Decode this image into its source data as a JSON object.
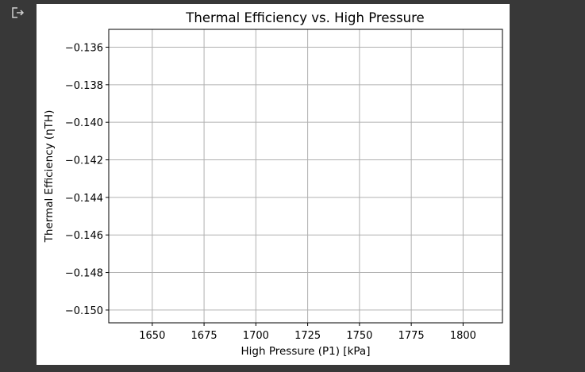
{
  "output": {
    "icon": "output-toggle-icon"
  },
  "chart_data": {
    "type": "line",
    "title": "Thermal Efficiency vs. High Pressure",
    "xlabel": "High Pressure (P1) [kPa]",
    "ylabel": "Thermal Efficiency (ηTH)",
    "xlim": [
      1629,
      1819
    ],
    "ylim": [
      -0.15068,
      -0.13505
    ],
    "xticks": [
      1650,
      1675,
      1700,
      1725,
      1750,
      1775,
      1800
    ],
    "xtick_labels": [
      "1650",
      "1675",
      "1700",
      "1725",
      "1750",
      "1775",
      "1800"
    ],
    "yticks": [
      -0.136,
      -0.138,
      -0.14,
      -0.142,
      -0.144,
      -0.146,
      -0.148,
      -0.15
    ],
    "ytick_labels": [
      "−0.136",
      "−0.138",
      "−0.140",
      "−0.142",
      "−0.144",
      "−0.146",
      "−0.148",
      "−0.150"
    ],
    "grid": true,
    "series": [
      {
        "values": []
      }
    ]
  }
}
